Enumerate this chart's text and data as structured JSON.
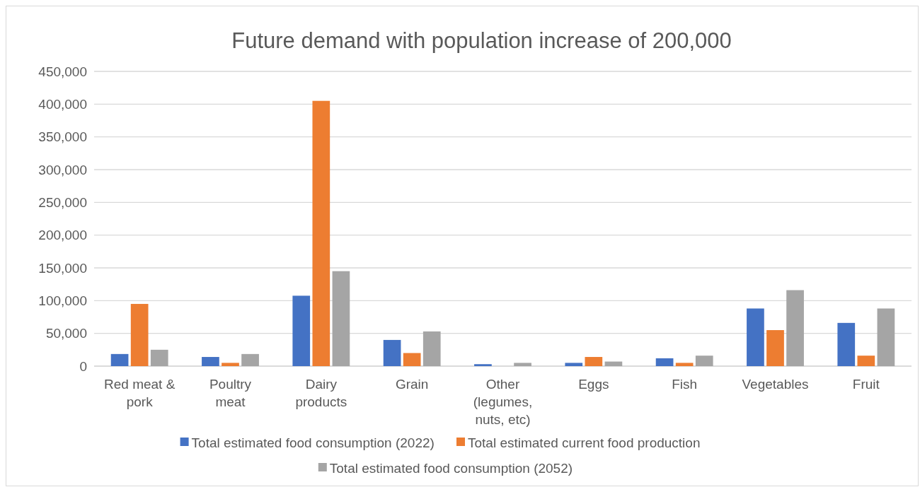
{
  "chart_data": {
    "type": "bar",
    "title": "Future demand with population increase of 200,000",
    "categories": [
      "Red meat & pork",
      "Poultry meat",
      "Dairy products",
      "Grain",
      "Other (legumes, nuts, etc)",
      "Eggs",
      "Fish",
      "Vegetables",
      "Fruit"
    ],
    "series": [
      {
        "name": "Total estimated food consumption (2022)",
        "color": "#4472c4",
        "values": [
          18500,
          14000,
          107500,
          40000,
          3000,
          5000,
          12000,
          88000,
          66000
        ]
      },
      {
        "name": "Total estimated current food production",
        "color": "#ed7d31",
        "values": [
          95000,
          5000,
          405000,
          20000,
          0,
          14000,
          5000,
          55000,
          16000
        ]
      },
      {
        "name": "Total estimated food consumption (2052)",
        "color": "#a5a5a5",
        "values": [
          25000,
          18500,
          145000,
          53000,
          5000,
          7000,
          16000,
          116000,
          88000
        ]
      }
    ],
    "ylim": [
      0,
      450000
    ],
    "yticks": [
      {
        "value": 0,
        "label": "0"
      },
      {
        "value": 50000,
        "label": "50,000"
      },
      {
        "value": 100000,
        "label": "100,000"
      },
      {
        "value": 150000,
        "label": "150,000"
      },
      {
        "value": 200000,
        "label": "200,000"
      },
      {
        "value": 250000,
        "label": "250,000"
      },
      {
        "value": 300000,
        "label": "300,000"
      },
      {
        "value": 350000,
        "label": "350,000"
      },
      {
        "value": 400000,
        "label": "400,000"
      },
      {
        "value": 450000,
        "label": "450,000"
      }
    ],
    "grid": "y",
    "legend": "bottom"
  }
}
